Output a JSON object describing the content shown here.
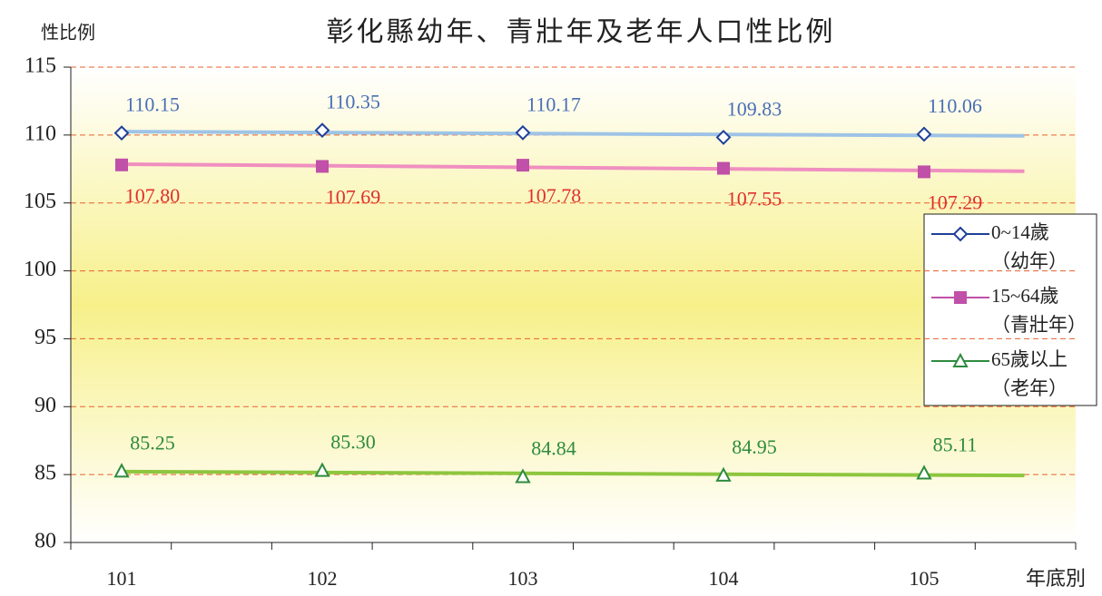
{
  "chart_data": {
    "type": "line",
    "title": "彰化縣幼年、青壯年及老年人口性比例",
    "y_label": "性比例",
    "x_label": "年底別",
    "categories": [
      "101",
      "102",
      "103",
      "104",
      "105"
    ],
    "series": [
      {
        "name": "0~14歲\n（幼年）",
        "color": "#1f3f99",
        "label_color": "#4a6fb5",
        "trend_color": "#9ec3e6",
        "marker": "diamond",
        "values": [
          110.15,
          110.35,
          110.17,
          109.83,
          110.06
        ],
        "value_labels": [
          "110.15",
          "110.35",
          "110.17",
          "109.83",
          "110.06"
        ]
      },
      {
        "name": "15~64歲\n（青壯年）",
        "color": "#c050a8",
        "label_color": "#e0302f",
        "trend_color": "#f08fc0",
        "marker": "square",
        "values": [
          107.8,
          107.69,
          107.78,
          107.55,
          107.29
        ],
        "value_labels": [
          "107.80",
          "107.69",
          "107.78",
          "107.55",
          "107.29"
        ]
      },
      {
        "name": "65歲以上\n（老年）",
        "color": "#2e8b3e",
        "label_color": "#2e8b3e",
        "trend_color": "#8dc63f",
        "marker": "triangle",
        "values": [
          85.25,
          85.3,
          84.84,
          84.95,
          85.11
        ],
        "value_labels": [
          "85.25",
          "85.30",
          "84.84",
          "84.95",
          "85.11"
        ]
      }
    ],
    "ylim": [
      80,
      115
    ],
    "yticks": [
      80,
      85,
      90,
      95,
      100,
      105,
      110,
      115
    ],
    "grid": true,
    "legend": "right"
  }
}
